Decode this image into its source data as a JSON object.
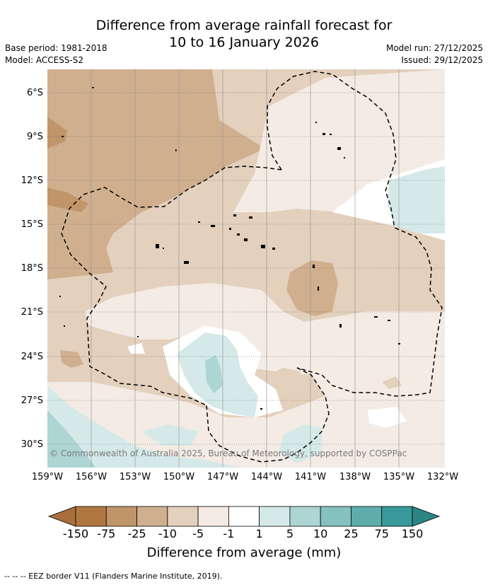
{
  "header": {
    "title_line1": "Difference from average rainfall forecast for",
    "title_line2": "10 to 16 January 2026",
    "base_period": "Base period: 1981-2018",
    "model": "Model: ACCESS-S2",
    "model_run": "Model run: 27/12/2025",
    "issued": "Issued: 29/12/2025"
  },
  "map": {
    "lat_labels": [
      "6°S",
      "9°S",
      "12°S",
      "15°S",
      "18°S",
      "21°S",
      "24°S",
      "27°S",
      "30°S"
    ],
    "lon_labels": [
      "159°W",
      "156°W",
      "153°W",
      "150°W",
      "147°W",
      "144°W",
      "141°W",
      "138°W",
      "135°W",
      "132°W"
    ],
    "copyright": "© Commonwealth of Australia 2025, Bureau of Meteorology, supported by COSPPac"
  },
  "colorbar": {
    "tick_labels": [
      "-150",
      "-75",
      "-25",
      "-10",
      "-5",
      "-1",
      "1",
      "5",
      "10",
      "25",
      "75",
      "150"
    ],
    "colors": [
      "#a86f3c",
      "#b07840",
      "#c1956a",
      "#d0af8e",
      "#e3d0bd",
      "#f4ebe4",
      "#ffffff",
      "#d5eae8",
      "#acd5d3",
      "#84c1bf",
      "#5fadab",
      "#38999a",
      "#2b8585"
    ],
    "title": "Difference from average (mm)"
  },
  "legend": {
    "text": "--  --  -- EEZ border V11 (Flanders Marine Institute, 2019)."
  }
}
